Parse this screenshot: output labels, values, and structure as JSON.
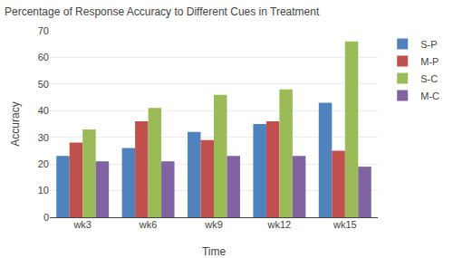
{
  "chart_data": {
    "type": "bar",
    "title": "Percentage of Response Accuracy to Different Cues in Treatment",
    "xlabel": "Time",
    "ylabel": "Accuracy",
    "categories": [
      "wk3",
      "wk6",
      "wk9",
      "wk12",
      "wk15"
    ],
    "series": [
      {
        "name": "S-P",
        "color": "#4F81BD",
        "values": [
          23,
          26,
          32,
          35,
          43
        ]
      },
      {
        "name": "M-P",
        "color": "#C0504D",
        "values": [
          28,
          36,
          29,
          36,
          25
        ]
      },
      {
        "name": "S-C",
        "color": "#9BBB59",
        "values": [
          33,
          41,
          46,
          48,
          66
        ]
      },
      {
        "name": "M-C",
        "color": "#8064A2",
        "values": [
          21,
          21,
          23,
          23,
          19
        ]
      }
    ],
    "ylim": [
      0,
      70
    ],
    "yticks": [
      0,
      10,
      20,
      30,
      40,
      50,
      60,
      70
    ],
    "grid": true,
    "legend": "right"
  }
}
